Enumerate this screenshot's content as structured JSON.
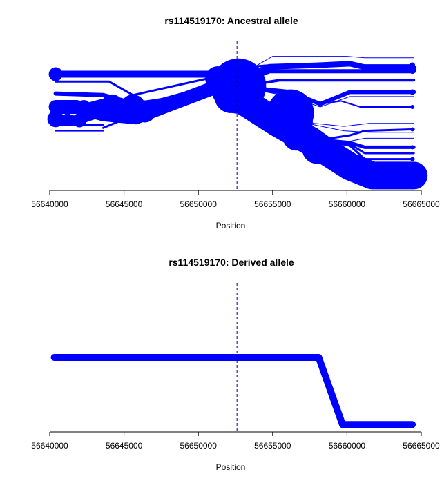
{
  "chart_data": [
    {
      "type": "line",
      "title": "rs114519170: Ancestral allele",
      "xlabel": "Position",
      "ylabel": "",
      "xlim": [
        56640000,
        56665000
      ],
      "ylim": [
        0,
        1
      ],
      "x_ticks": [
        "56640000",
        "56645000",
        "56650000",
        "56655000",
        "56660000",
        "56665000"
      ],
      "x_tick_values": [
        56640000,
        56645000,
        56650000,
        56655000,
        56660000,
        56665000
      ],
      "focal_position": 56652600,
      "line_color": "#0000ff",
      "focal_line_color": "#00008b",
      "grid": false,
      "legend": "none",
      "series": [
        {
          "x": [
            56640400,
            56645000,
            56652400
          ],
          "y": [
            0.78,
            0.78,
            0.78
          ],
          "weight": 10
        },
        {
          "x": [
            56640400,
            56644000,
            56645600,
            56652400
          ],
          "y": [
            0.73,
            0.73,
            0.64,
            0.79
          ],
          "weight": 3
        },
        {
          "x": [
            56640400,
            56643600,
            56645800,
            56652400
          ],
          "y": [
            0.65,
            0.64,
            0.58,
            0.68
          ],
          "weight": 6
        },
        {
          "x": [
            56640400,
            56642200,
            56643700,
            56645600,
            56652400
          ],
          "y": [
            0.55,
            0.56,
            0.6,
            0.54,
            0.7
          ],
          "weight": 8
        },
        {
          "x": [
            56640400,
            56641800,
            56643600,
            56645800,
            56652400
          ],
          "y": [
            0.48,
            0.47,
            0.53,
            0.54,
            0.72
          ],
          "weight": 14
        },
        {
          "x": [
            56640400,
            56641800,
            56643600,
            56645800,
            56652400
          ],
          "y": [
            0.56,
            0.56,
            0.51,
            0.49,
            0.74
          ],
          "weight": 20
        },
        {
          "x": [
            56640400,
            56643600
          ],
          "y": [
            0.44,
            0.44
          ],
          "weight": 2
        },
        {
          "x": [
            56640400,
            56643600
          ],
          "y": [
            0.4,
            0.4
          ],
          "weight": 2
        },
        {
          "x": [
            56643600,
            56645800,
            56652400
          ],
          "y": [
            0.42,
            0.51,
            0.7
          ],
          "weight": 3
        },
        {
          "x": [
            56652400,
            56655000,
            56660000,
            56661200,
            56664500
          ],
          "y": [
            0.75,
            0.9,
            0.9,
            0.89,
            0.89
          ],
          "weight": 1
        },
        {
          "x": [
            56652400,
            56653500,
            56654800,
            56658000,
            56660200,
            56664500
          ],
          "y": [
            0.82,
            0.83,
            0.84,
            0.84,
            0.84,
            0.84
          ],
          "weight": 3
        },
        {
          "x": [
            56652400,
            56654800,
            56658000,
            56660200,
            56661500,
            56664500
          ],
          "y": [
            0.74,
            0.83,
            0.84,
            0.85,
            0.82,
            0.82
          ],
          "weight": 8
        },
        {
          "x": [
            56652400,
            56653200,
            56654800,
            56658000,
            56660200,
            56661500,
            56664500
          ],
          "y": [
            0.68,
            0.74,
            0.8,
            0.8,
            0.8,
            0.8,
            0.8
          ],
          "weight": 6
        },
        {
          "x": [
            56652400,
            56653600,
            56655500,
            56656200,
            56664500
          ],
          "y": [
            0.72,
            0.71,
            0.74,
            0.74,
            0.74
          ],
          "weight": 4
        },
        {
          "x": [
            56652400,
            56656200,
            56658200,
            56660200,
            56661000,
            56664500
          ],
          "y": [
            0.7,
            0.63,
            0.56,
            0.63,
            0.63,
            0.63
          ],
          "weight": 1
        },
        {
          "x": [
            56652400,
            56656200,
            56658200,
            56660200,
            56661500,
            56664500
          ],
          "y": [
            0.7,
            0.66,
            0.58,
            0.66,
            0.66,
            0.66
          ],
          "weight": 6
        },
        {
          "x": [
            56652400,
            56656200,
            56658200,
            56659600,
            56660900,
            56664500
          ],
          "y": [
            0.7,
            0.64,
            0.58,
            0.6,
            0.56,
            0.56
          ],
          "weight": 2
        },
        {
          "x": [
            56652400,
            56655200,
            56657800,
            56659800,
            56661500,
            56664500
          ],
          "y": [
            0.64,
            0.53,
            0.45,
            0.43,
            0.45,
            0.45
          ],
          "weight": 1
        },
        {
          "x": [
            56652400,
            56655200,
            56657800,
            56659800,
            56661500,
            56664500
          ],
          "y": [
            0.64,
            0.53,
            0.44,
            0.4,
            0.39,
            0.39
          ],
          "weight": 1
        },
        {
          "x": [
            56652400,
            56655500,
            56658200,
            56660200,
            56661200,
            56664500
          ],
          "y": [
            0.64,
            0.5,
            0.34,
            0.37,
            0.4,
            0.41
          ],
          "weight": 3
        },
        {
          "x": [
            56652400,
            56655500,
            56658200,
            56660200,
            56661200,
            56664500
          ],
          "y": [
            0.64,
            0.5,
            0.34,
            0.33,
            0.35,
            0.35
          ],
          "weight": 1
        },
        {
          "x": [
            56652400,
            56655500,
            56658200,
            56660200,
            56661200,
            56664500
          ],
          "y": [
            0.64,
            0.5,
            0.34,
            0.32,
            0.29,
            0.29
          ],
          "weight": 5
        },
        {
          "x": [
            56652400,
            56655500,
            56658200,
            56660200,
            56661200,
            56664500
          ],
          "y": [
            0.64,
            0.5,
            0.34,
            0.31,
            0.25,
            0.25
          ],
          "weight": 3
        },
        {
          "x": [
            56652400,
            56655500,
            56658200,
            56660200,
            56661200,
            56664500
          ],
          "y": [
            0.64,
            0.5,
            0.34,
            0.3,
            0.21,
            0.21
          ],
          "weight": 3
        },
        {
          "x": [
            56652400,
            56655500,
            56658200,
            56660200,
            56661200,
            56664500
          ],
          "y": [
            0.64,
            0.5,
            0.34,
            0.26,
            0.16,
            0.16
          ],
          "weight": 1
        },
        {
          "x": [
            56652400,
            56655500,
            56658200,
            56660200,
            56661600,
            56664500
          ],
          "y": [
            0.62,
            0.42,
            0.26,
            0.18,
            0.12,
            0.12
          ],
          "weight": 10
        },
        {
          "x": [
            56652400,
            56655200,
            56658000,
            56660200,
            56661700,
            56664500
          ],
          "y": [
            0.64,
            0.46,
            0.3,
            0.16,
            0.1,
            0.1
          ],
          "weight": 40
        },
        {
          "x": [
            56652400,
            56655000,
            56657800,
            56660000,
            56661600,
            56664500
          ],
          "y": [
            0.66,
            0.52,
            0.38,
            0.22,
            0.14,
            0.14
          ],
          "weight": 18
        },
        {
          "x": [
            56652400,
            56660800,
            56661700,
            56664500
          ],
          "y": [
            0.64,
            0.08,
            0.07,
            0.07
          ],
          "weight": 8
        }
      ],
      "nodes": [
        {
          "x": 56640400,
          "y": 0.78,
          "size": 10
        },
        {
          "x": 56640400,
          "y": 0.48,
          "size": 12
        },
        {
          "x": 56641200,
          "y": 0.48,
          "size": 8
        },
        {
          "x": 56642000,
          "y": 0.47,
          "size": 10
        },
        {
          "x": 56642300,
          "y": 0.56,
          "size": 10
        },
        {
          "x": 56643400,
          "y": 0.54,
          "size": 14
        },
        {
          "x": 56644200,
          "y": 0.57,
          "size": 16
        },
        {
          "x": 56645600,
          "y": 0.56,
          "size": 18
        },
        {
          "x": 56646400,
          "y": 0.53,
          "size": 16
        },
        {
          "x": 56651300,
          "y": 0.75,
          "size": 18
        },
        {
          "x": 56652500,
          "y": 0.74,
          "size": 30
        },
        {
          "x": 56652700,
          "y": 0.7,
          "size": 40
        },
        {
          "x": 56652200,
          "y": 0.63,
          "size": 24
        },
        {
          "x": 56653800,
          "y": 0.7,
          "size": 16
        },
        {
          "x": 56655800,
          "y": 0.63,
          "size": 6
        },
        {
          "x": 56656200,
          "y": 0.52,
          "size": 34
        },
        {
          "x": 56656400,
          "y": 0.46,
          "size": 28
        },
        {
          "x": 56656600,
          "y": 0.36,
          "size": 20
        },
        {
          "x": 56658000,
          "y": 0.28,
          "size": 22
        },
        {
          "x": 56660200,
          "y": 0.18,
          "size": 14
        },
        {
          "x": 56661700,
          "y": 0.08,
          "size": 12
        },
        {
          "x": 56664300,
          "y": 0.08,
          "size": 12
        },
        {
          "x": 56664400,
          "y": 0.84,
          "size": 4
        },
        {
          "x": 56664400,
          "y": 0.8,
          "size": 4
        },
        {
          "x": 56664400,
          "y": 0.66,
          "size": 4
        },
        {
          "x": 56664400,
          "y": 0.56,
          "size": 3
        },
        {
          "x": 56664400,
          "y": 0.41,
          "size": 3
        },
        {
          "x": 56664400,
          "y": 0.29,
          "size": 3
        },
        {
          "x": 56664400,
          "y": 0.21,
          "size": 3
        }
      ]
    },
    {
      "type": "line",
      "title": "rs114519170: Derived allele",
      "xlabel": "Position",
      "ylabel": "",
      "xlim": [
        56640000,
        56665000
      ],
      "ylim": [
        0,
        1
      ],
      "x_ticks": [
        "56640000",
        "56645000",
        "56650000",
        "56655000",
        "56660000",
        "56665000"
      ],
      "x_tick_values": [
        56640000,
        56645000,
        56650000,
        56655000,
        56660000,
        56665000
      ],
      "focal_position": 56652600,
      "line_color": "#0000ff",
      "focal_line_color": "#00008b",
      "grid": false,
      "legend": "none",
      "series": [
        {
          "x": [
            56640300,
            56652600,
            56658100,
            56659700,
            56664400
          ],
          "y": [
            0.5,
            0.5,
            0.5,
            0.05,
            0.05
          ],
          "weight": 10
        }
      ],
      "nodes": [
        {
          "x": 56640300,
          "y": 0.5,
          "size": 4
        },
        {
          "x": 56658100,
          "y": 0.5,
          "size": 4
        },
        {
          "x": 56659700,
          "y": 0.05,
          "size": 4
        },
        {
          "x": 56664400,
          "y": 0.05,
          "size": 4
        }
      ]
    }
  ]
}
